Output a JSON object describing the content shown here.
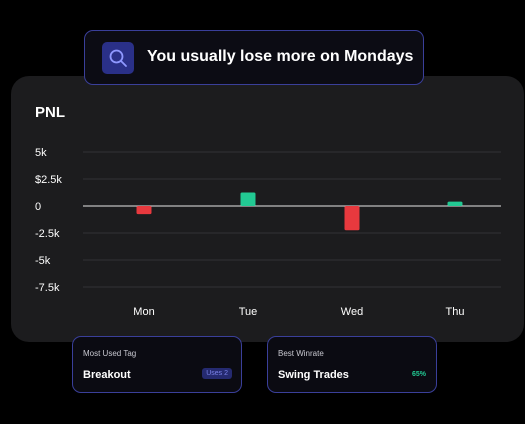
{
  "insight": {
    "text": "You usually lose more on Mondays",
    "icon": "search-icon"
  },
  "chart_data": {
    "type": "bar",
    "title": "PNL",
    "categories": [
      "Mon",
      "Tue",
      "Wed",
      "Thu"
    ],
    "values": [
      -750,
      1250,
      -2250,
      400
    ],
    "yticks": [
      5000,
      2500,
      0,
      -2500,
      -5000,
      -7500
    ],
    "ytick_labels": [
      "5k",
      "$2.5k",
      "0",
      "-2.5k",
      "-5k",
      "-7.5k"
    ],
    "ylim": [
      -7500,
      5000
    ],
    "grid": true,
    "colors": {
      "positive": "#22c993",
      "negative": "#e8393e"
    }
  },
  "cards": {
    "most_used_tag": {
      "label": "Most Used Tag",
      "value": "Breakout",
      "badge": "Uses 2"
    },
    "best_winrate": {
      "label": "Best Winrate",
      "value": "Swing Trades",
      "winrate": "65%"
    }
  }
}
